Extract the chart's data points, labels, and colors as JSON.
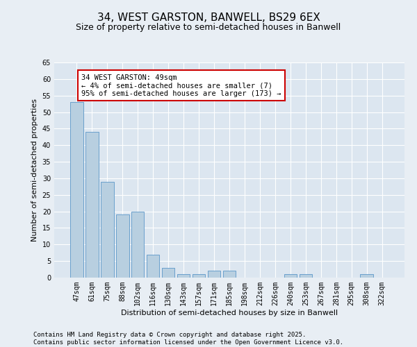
{
  "title_line1": "34, WEST GARSTON, BANWELL, BS29 6EX",
  "title_line2": "Size of property relative to semi-detached houses in Banwell",
  "xlabel": "Distribution of semi-detached houses by size in Banwell",
  "ylabel": "Number of semi-detached properties",
  "categories": [
    "47sqm",
    "61sqm",
    "75sqm",
    "88sqm",
    "102sqm",
    "116sqm",
    "130sqm",
    "143sqm",
    "157sqm",
    "171sqm",
    "185sqm",
    "198sqm",
    "212sqm",
    "226sqm",
    "240sqm",
    "253sqm",
    "267sqm",
    "281sqm",
    "295sqm",
    "308sqm",
    "322sqm"
  ],
  "values": [
    53,
    44,
    29,
    19,
    20,
    7,
    3,
    1,
    1,
    2,
    2,
    0,
    0,
    0,
    1,
    1,
    0,
    0,
    0,
    1,
    0
  ],
  "bar_color": "#b8cfe0",
  "bar_edge_color": "#5a96c8",
  "annotation_title": "34 WEST GARSTON: 49sqm",
  "annotation_line1": "← 4% of semi-detached houses are smaller (7)",
  "annotation_line2": "95% of semi-detached houses are larger (173) →",
  "annotation_box_color": "#ffffff",
  "annotation_box_edge_color": "#cc0000",
  "ylim": [
    0,
    65
  ],
  "yticks": [
    0,
    5,
    10,
    15,
    20,
    25,
    30,
    35,
    40,
    45,
    50,
    55,
    60,
    65
  ],
  "background_color": "#e8eef4",
  "plot_background": "#dce6f0",
  "grid_color": "#ffffff",
  "footer_line1": "Contains HM Land Registry data © Crown copyright and database right 2025.",
  "footer_line2": "Contains public sector information licensed under the Open Government Licence v3.0.",
  "title_fontsize": 11,
  "subtitle_fontsize": 9,
  "axis_label_fontsize": 8,
  "tick_fontsize": 7,
  "annotation_fontsize": 7.5,
  "footer_fontsize": 6.5
}
